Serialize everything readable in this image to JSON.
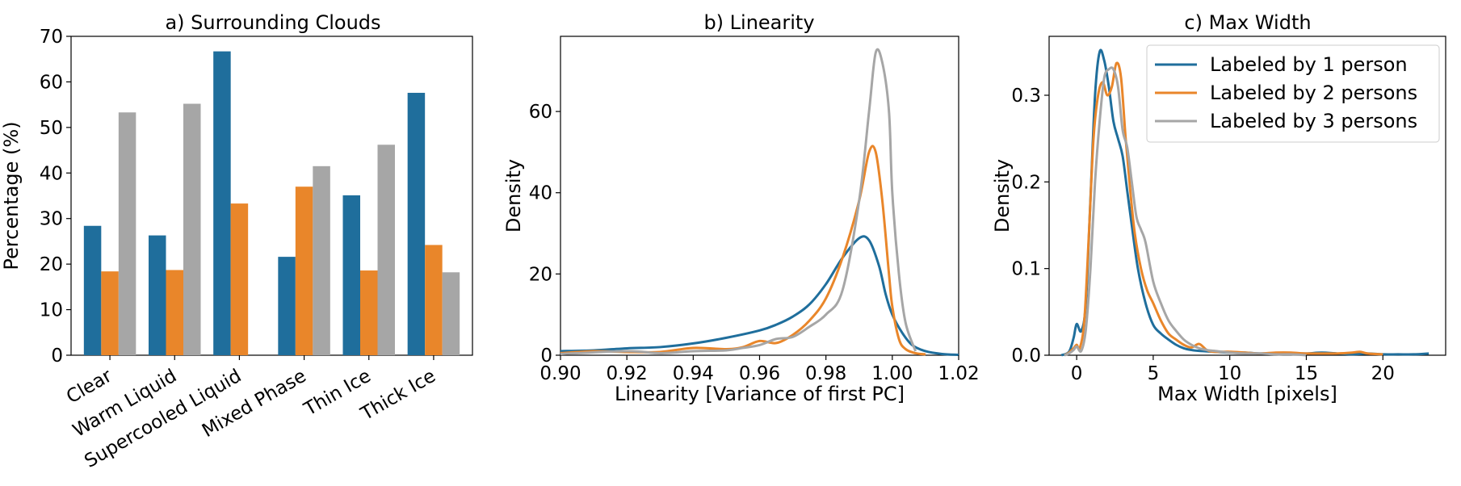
{
  "colors": {
    "person1": "#1f6e9c",
    "person2": "#e9862a",
    "person3": "#a6a6a6",
    "axis": "#000000"
  },
  "chart_data": [
    {
      "type": "bar",
      "title": "a) Surrounding Clouds",
      "xlabel": "",
      "ylabel": "Percentage (%)",
      "ylim": [
        0,
        70
      ],
      "yticks": [
        "0",
        "10",
        "20",
        "30",
        "40",
        "50",
        "60",
        "70"
      ],
      "categories": [
        "Clear",
        "Warm Liquid",
        "Supercooled Liquid",
        "Mixed Phase",
        "Thin Ice",
        "Thick Ice"
      ],
      "series": [
        {
          "values": [
            28.4,
            26.3,
            66.7,
            21.6,
            35.1,
            57.6
          ]
        },
        {
          "values": [
            18.4,
            18.7,
            33.3,
            37.0,
            18.6,
            24.2
          ]
        },
        {
          "values": [
            53.3,
            55.2,
            0,
            41.5,
            46.2,
            18.2
          ]
        }
      ],
      "grid": false
    },
    {
      "type": "line",
      "title": "b) Linearity",
      "xlabel": "Linearity [Variance of first PC]",
      "ylabel": "Density",
      "xlim": [
        0.9,
        1.02
      ],
      "ylim": [
        0,
        78.5
      ],
      "xticks": [
        "0.90",
        "0.92",
        "0.94",
        "0.96",
        "0.98",
        "1.00",
        "1.02"
      ],
      "yticks": [
        "0",
        "20",
        "40",
        "60"
      ],
      "series": [
        {
          "x": [
            0.9,
            0.91,
            0.92,
            0.93,
            0.94,
            0.95,
            0.96,
            0.965,
            0.97,
            0.975,
            0.98,
            0.985,
            0.99,
            0.993,
            0.996,
            0.998,
            1.0,
            1.003,
            1.006,
            1.01,
            1.015,
            1.02
          ],
          "y": [
            1.0,
            1.2,
            1.7,
            2.0,
            2.9,
            4.3,
            6.1,
            7.5,
            9.5,
            12.5,
            17.5,
            24.0,
            28.8,
            28.3,
            22.0,
            15.0,
            10.0,
            5.5,
            2.5,
            1.0,
            0.3,
            0.1
          ]
        },
        {
          "x": [
            0.9,
            0.91,
            0.92,
            0.93,
            0.94,
            0.95,
            0.955,
            0.96,
            0.965,
            0.97,
            0.975,
            0.98,
            0.985,
            0.99,
            0.993,
            0.995,
            0.997,
            0.999,
            1.0,
            1.002,
            1.004,
            1.007,
            1.01
          ],
          "y": [
            0.5,
            1.0,
            0.8,
            0.8,
            1.8,
            1.5,
            2.0,
            3.5,
            3.0,
            5.0,
            8.5,
            14.0,
            24.0,
            38.0,
            50.0,
            50.0,
            38.0,
            20.0,
            12.0,
            4.0,
            1.5,
            0.5,
            0.2
          ]
        },
        {
          "x": [
            0.9,
            0.92,
            0.93,
            0.94,
            0.95,
            0.955,
            0.96,
            0.965,
            0.97,
            0.975,
            0.98,
            0.985,
            0.99,
            0.993,
            0.995,
            0.997,
            0.999,
            1.0,
            1.002,
            1.004,
            1.007
          ],
          "y": [
            0.3,
            1.0,
            0.5,
            1.0,
            1.2,
            1.8,
            2.5,
            4.0,
            4.5,
            7.0,
            10.0,
            16.0,
            38.0,
            60.0,
            74.5,
            72.0,
            60.0,
            40.0,
            20.0,
            8.0,
            1.0
          ]
        }
      ],
      "grid": false
    },
    {
      "type": "line",
      "title": "c) Max Width",
      "xlabel": "Max Width [pixels]",
      "ylabel": "Density",
      "xlim": [
        -1.8,
        24.1
      ],
      "ylim": [
        0,
        0.368
      ],
      "xticks": [
        "0",
        "5",
        "10",
        "15",
        "20"
      ],
      "yticks": [
        "0.0",
        "0.1",
        "0.2",
        "0.3"
      ],
      "legend": {
        "position": "top-right",
        "entries": [
          "Labeled by 1 person",
          "Labeled by 2 persons",
          "Labeled by 3 persons"
        ]
      },
      "series": [
        {
          "name": "Labeled by 1 person",
          "x": [
            -1.0,
            -0.5,
            -0.2,
            0.0,
            0.3,
            0.6,
            0.9,
            1.2,
            1.5,
            1.8,
            2.1,
            2.4,
            2.7,
            3.0,
            3.3,
            3.6,
            4.0,
            4.5,
            5.0,
            5.5,
            6.0,
            6.5,
            7.0,
            7.5,
            8.0,
            9.0,
            10.0,
            11.0,
            12.0,
            13.0,
            14.0,
            15.0,
            16.0,
            17.0,
            18.0,
            19.0,
            20.0,
            21.0,
            22.0,
            23.0
          ],
          "y": [
            0.0,
            0.004,
            0.02,
            0.036,
            0.028,
            0.06,
            0.18,
            0.3,
            0.35,
            0.34,
            0.31,
            0.27,
            0.25,
            0.23,
            0.19,
            0.15,
            0.1,
            0.06,
            0.035,
            0.025,
            0.018,
            0.012,
            0.008,
            0.006,
            0.005,
            0.004,
            0.003,
            0.003,
            0.002,
            0.002,
            0.002,
            0.002,
            0.003,
            0.002,
            0.001,
            0.002,
            0.001,
            0.001,
            0.001,
            0.002
          ]
        },
        {
          "name": "Labeled by 2 persons",
          "x": [
            -0.8,
            -0.5,
            -0.2,
            0.0,
            0.2,
            0.5,
            0.8,
            1.1,
            1.4,
            1.7,
            2.0,
            2.3,
            2.6,
            2.9,
            3.2,
            3.5,
            3.8,
            4.2,
            4.6,
            5.0,
            5.5,
            6.0,
            6.5,
            7.0,
            7.5,
            8.0,
            8.5,
            9.0,
            10.0,
            11.0,
            12.0,
            13.0,
            14.0,
            15.0,
            16.0,
            17.0,
            18.0,
            18.5,
            19.0,
            20.0
          ],
          "y": [
            0.0,
            0.003,
            0.008,
            0.012,
            0.008,
            0.04,
            0.14,
            0.25,
            0.3,
            0.315,
            0.3,
            0.31,
            0.337,
            0.32,
            0.25,
            0.19,
            0.14,
            0.1,
            0.075,
            0.06,
            0.04,
            0.025,
            0.018,
            0.012,
            0.009,
            0.013,
            0.006,
            0.004,
            0.004,
            0.003,
            0.002,
            0.003,
            0.003,
            0.002,
            0.002,
            0.002,
            0.003,
            0.004,
            0.002,
            0.001
          ]
        },
        {
          "name": "Labeled by 3 persons",
          "x": [
            -0.8,
            -0.5,
            -0.2,
            0.0,
            0.3,
            0.6,
            0.9,
            1.2,
            1.5,
            1.8,
            2.1,
            2.4,
            2.7,
            3.0,
            3.3,
            3.6,
            3.9,
            4.2,
            4.5,
            5.0,
            5.5,
            6.0,
            6.5,
            7.0,
            7.5,
            8.0,
            8.5,
            9.0,
            10.0,
            11.0,
            12.0,
            13.0,
            14.0,
            15.0
          ],
          "y": [
            0.0,
            0.002,
            0.006,
            0.01,
            0.005,
            0.03,
            0.1,
            0.2,
            0.27,
            0.32,
            0.33,
            0.33,
            0.31,
            0.26,
            0.24,
            0.2,
            0.16,
            0.145,
            0.13,
            0.085,
            0.06,
            0.04,
            0.028,
            0.018,
            0.012,
            0.008,
            0.006,
            0.005,
            0.003,
            0.002,
            0.002,
            0.001,
            0.001,
            0.0
          ]
        }
      ],
      "grid": false
    }
  ]
}
